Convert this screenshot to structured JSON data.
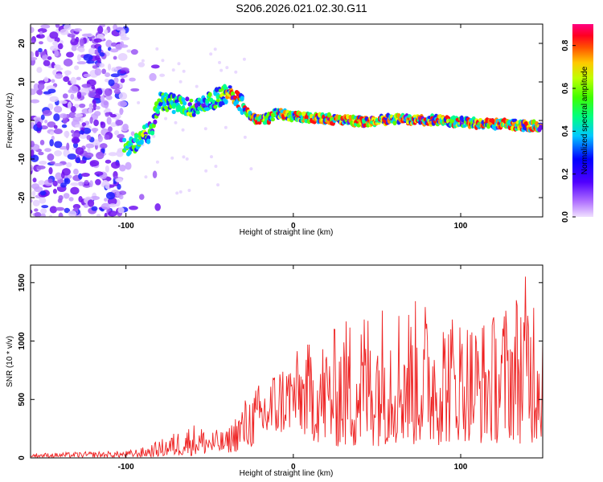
{
  "figure": {
    "title": "S206.2026.021.02.30.G11"
  },
  "chart_data": [
    {
      "type": "heatmap",
      "title": "S206.2026.021.02.30.G11",
      "xlabel": "Height of straight line (km)",
      "ylabel": "Frequency (Hz)",
      "xlim": [
        -157,
        149
      ],
      "ylim": [
        -25,
        25
      ],
      "xticks": [
        -100,
        0,
        100
      ],
      "yticks": [
        -20,
        -10,
        0,
        10,
        20
      ],
      "colorbar": {
        "label": "Normalized spectral amplitude",
        "range": [
          0.0,
          0.9
        ],
        "ticks": [
          0.0,
          0.2,
          0.4,
          0.6,
          0.8
        ],
        "tick_labels": [
          "0.0",
          "0.2",
          "0.4",
          "0.6",
          "0.8"
        ],
        "colormap": [
          "#f0e0ff",
          "#8000ff",
          "#0000ff",
          "#00c8ff",
          "#00ff80",
          "#80ff00",
          "#ffff00",
          "#ff8000",
          "#ff0000",
          "#ff0080"
        ]
      },
      "ridge": {
        "x": [
          -100,
          -95,
          -90,
          -85,
          -80,
          -75,
          -70,
          -65,
          -60,
          -55,
          -50,
          -45,
          -40,
          -35,
          -30,
          -25,
          -20,
          -15,
          -10,
          -5,
          0,
          10,
          20,
          30,
          40,
          50,
          60,
          70,
          80,
          90,
          100,
          110,
          120,
          130,
          140,
          149
        ],
        "y": [
          -7,
          -6,
          -4,
          -3,
          5,
          5,
          4,
          4,
          3,
          4,
          5,
          6,
          7,
          6.5,
          4,
          1,
          0,
          0.5,
          2,
          1.5,
          1,
          0.8,
          0.5,
          0,
          -0.3,
          0,
          0.5,
          0.2,
          0,
          0,
          -0.5,
          -0.7,
          -1,
          -1,
          -1.5,
          -1.5
        ]
      },
      "grid": false
    },
    {
      "type": "line",
      "xlabel": "Height of straight line (km)",
      "ylabel": "SNR (10 * v/v)",
      "xlim": [
        -157,
        149
      ],
      "ylim": [
        0,
        1650
      ],
      "xticks": [
        -100,
        0,
        100
      ],
      "yticks": [
        0,
        500,
        1000,
        1500
      ],
      "series": [
        {
          "color": "#ee2222",
          "x": [
            -157,
            -140,
            -120,
            -100,
            -90,
            -80,
            -70,
            -60,
            -50,
            -40,
            -30,
            -20,
            -10,
            0,
            10,
            20,
            30,
            40,
            50,
            60,
            70,
            80,
            90,
            100,
            110,
            120,
            130,
            140,
            149
          ],
          "y_min": [
            5,
            5,
            5,
            5,
            5,
            10,
            15,
            20,
            30,
            40,
            60,
            120,
            180,
            250,
            150,
            100,
            80,
            60,
            100,
            120,
            100,
            100,
            110,
            150,
            120,
            120,
            150,
            100,
            150
          ],
          "y_max": [
            40,
            45,
            55,
            60,
            90,
            150,
            230,
            300,
            250,
            230,
            500,
            650,
            800,
            900,
            1000,
            1050,
            1200,
            1300,
            1350,
            1380,
            1350,
            1380,
            1300,
            1250,
            1200,
            1250,
            1400,
            1600,
            1550
          ]
        }
      ],
      "grid": false
    }
  ]
}
